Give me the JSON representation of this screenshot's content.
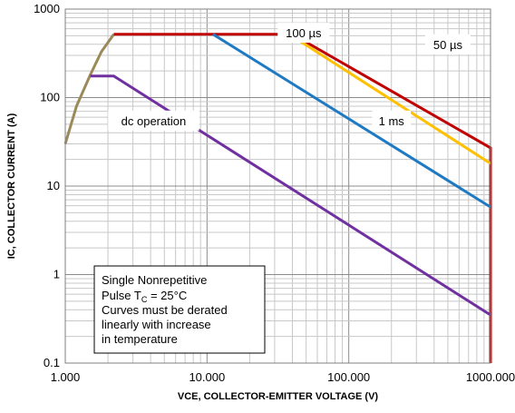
{
  "chart_data": {
    "type": "line",
    "xlabel": "VCE, COLLECTOR-EMITTER VOLTAGE (V)",
    "ylabel": "IC, COLLECTOR CURRENT (A)",
    "x_scale": "log",
    "y_scale": "log",
    "xlim": [
      1,
      1000
    ],
    "ylim": [
      0.1,
      1000
    ],
    "x_tick_values": [
      1,
      10,
      100,
      1000
    ],
    "x_tick_labels": [
      "1.000",
      "10.000",
      "100.000",
      "1000.000"
    ],
    "y_tick_values": [
      0.1,
      1,
      10,
      100,
      1000
    ],
    "y_tick_labels": [
      "0.1",
      "1",
      "10",
      "100",
      "1000"
    ],
    "grid": true,
    "series": [
      {
        "color": "#9a8a5a",
        "points": [
          [
            1.0,
            30
          ],
          [
            1.2,
            80
          ],
          [
            1.5,
            180
          ],
          [
            1.8,
            330
          ],
          [
            2.2,
            520
          ]
        ]
      },
      {
        "color": "#c00000",
        "points": [
          [
            2.2,
            520
          ],
          [
            40,
            520
          ],
          [
            1000,
            27
          ],
          [
            1000,
            0.1
          ]
        ]
      },
      {
        "color": "#ffc000",
        "points": [
          [
            38,
            520
          ],
          [
            1000,
            18
          ]
        ]
      },
      {
        "color": "#1f7ac4",
        "points": [
          [
            11,
            520
          ],
          [
            1000,
            5.8
          ]
        ]
      },
      {
        "color": "#7030a0",
        "points": [
          [
            1.5,
            175
          ],
          [
            2.2,
            175
          ],
          [
            1000,
            0.35
          ]
        ]
      }
    ],
    "annotations": [
      {
        "text": "100 µs",
        "x": 48,
        "y": 540
      },
      {
        "text": "50 µs",
        "x": 500,
        "y": 400
      },
      {
        "text": "1 ms",
        "x": 200,
        "y": 55
      },
      {
        "text": "dc operation",
        "x": 4.2,
        "y": 55
      }
    ],
    "note_lines": [
      "Single Nonrepetitive",
      "Pulse T",
      "C",
      " = 25°C",
      "Curves must be derated",
      "linearly with increase",
      "in temperature"
    ]
  }
}
